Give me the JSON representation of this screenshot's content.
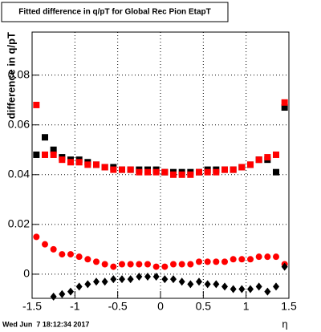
{
  "chart_data": {
    "type": "scatter",
    "title": "Fitted difference in q/pT for Global Rec Pion EtapT",
    "y_label": "difference in q/pT",
    "x_label": "η",
    "timestamp": "Wed Jun  7 18:12:34 2017",
    "x": [
      -1.45,
      -1.35,
      -1.25,
      -1.15,
      -1.05,
      -0.95,
      -0.85,
      -0.75,
      -0.65,
      -0.55,
      -0.45,
      -0.35,
      -0.25,
      -0.15,
      -0.05,
      0.05,
      0.15,
      0.25,
      0.35,
      0.45,
      0.55,
      0.65,
      0.75,
      0.85,
      0.95,
      1.05,
      1.15,
      1.25,
      1.35,
      1.45
    ],
    "series": [
      {
        "color": "#000000",
        "marker": "square",
        "values": [
          0.048,
          0.055,
          0.05,
          0.047,
          0.046,
          0.046,
          0.045,
          0.044,
          0.043,
          0.043,
          0.042,
          0.042,
          0.042,
          0.042,
          0.042,
          0.041,
          0.041,
          0.041,
          0.041,
          0.041,
          0.042,
          0.042,
          0.042,
          0.042,
          0.043,
          0.044,
          0.046,
          0.046,
          0.041,
          0.067
        ]
      },
      {
        "color": "#ff0000",
        "marker": "square",
        "values": [
          0.068,
          0.048,
          0.048,
          0.046,
          0.045,
          0.045,
          0.044,
          0.044,
          0.043,
          0.042,
          0.042,
          0.042,
          0.041,
          0.041,
          0.041,
          0.041,
          0.04,
          0.04,
          0.04,
          0.041,
          0.041,
          0.041,
          0.042,
          0.042,
          0.043,
          0.044,
          0.046,
          0.047,
          0.048,
          0.069
        ]
      },
      {
        "color": "#ff0000",
        "marker": "circle",
        "values": [
          0.015,
          0.012,
          0.01,
          0.008,
          0.008,
          0.007,
          0.006,
          0.005,
          0.004,
          0.003,
          0.004,
          0.004,
          0.004,
          0.004,
          0.003,
          0.003,
          0.004,
          0.004,
          0.004,
          0.005,
          0.005,
          0.005,
          0.005,
          0.006,
          0.006,
          0.006,
          0.007,
          0.007,
          0.007,
          0.004
        ]
      },
      {
        "color": "#000000",
        "marker": "diamond",
        "values": [
          null,
          null,
          -0.009,
          -0.008,
          -0.007,
          -0.005,
          -0.004,
          -0.003,
          -0.003,
          -0.002,
          -0.002,
          -0.002,
          -0.001,
          -0.001,
          -0.001,
          -0.002,
          -0.002,
          -0.003,
          -0.004,
          -0.003,
          -0.004,
          -0.004,
          -0.005,
          -0.006,
          -0.006,
          -0.006,
          -0.005,
          -0.007,
          -0.005,
          0.003
        ]
      }
    ],
    "xlim": [
      -1.5,
      1.5
    ],
    "xticks": [
      -1.5,
      -1,
      -0.5,
      0,
      0.5,
      1,
      1.5
    ],
    "ylim": [
      -0.0097,
      0.0973
    ],
    "yticks": [
      0,
      0.02,
      0.04,
      0.06,
      0.08
    ],
    "grid": true
  }
}
